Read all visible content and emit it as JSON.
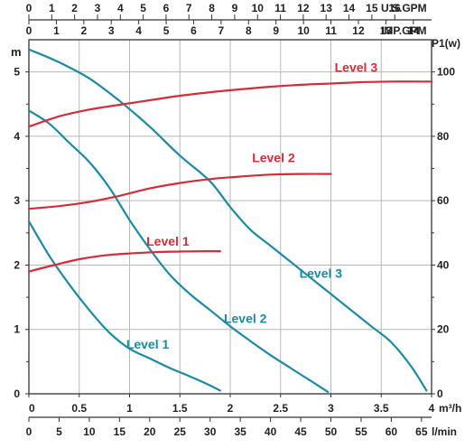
{
  "chart_data": {
    "type": "line",
    "left_axis": {
      "label": "m",
      "range": [
        0,
        5.5
      ],
      "ticks": [
        0,
        1,
        2,
        3,
        4,
        5
      ]
    },
    "right_axis": {
      "label": "P1(w)",
      "range": [
        0,
        110
      ],
      "ticks": [
        0,
        20,
        40,
        60,
        80,
        100
      ]
    },
    "x_axis_m3h": {
      "label": "m³/h",
      "range": [
        0,
        4
      ],
      "ticks": [
        "0",
        "0.5",
        "1",
        "1.5",
        "2",
        "2.5",
        "3",
        "3.5",
        "4"
      ]
    },
    "x_axis_lmin": {
      "label": "l/min",
      "ticks": [
        "0",
        "5",
        "10",
        "15",
        "20",
        "25",
        "30",
        "35",
        "40",
        "45",
        "50",
        "55",
        "60",
        "65"
      ]
    },
    "x_axis_usgpm": {
      "label": "U.S.GPM",
      "ticks": [
        "0",
        "1",
        "2",
        "3",
        "4",
        "5",
        "6",
        "7",
        "8",
        "9",
        "10",
        "11",
        "12",
        "13",
        "14",
        "15",
        "16"
      ]
    },
    "x_axis_impgpm": {
      "label": "IMP.GPM",
      "ticks": [
        "0",
        "1",
        "2",
        "3",
        "4",
        "5",
        "6",
        "7",
        "8",
        "9",
        "10",
        "11",
        "12",
        "13",
        "14"
      ]
    },
    "grid": true,
    "head_series": [
      {
        "name": "Level 1",
        "color": "#1b8aa2",
        "x": [
          0,
          0.2,
          0.4,
          0.6,
          0.8,
          1.0,
          1.2,
          1.4,
          1.6,
          1.8,
          1.9
        ],
        "y": [
          2.68,
          2.15,
          1.7,
          1.3,
          0.95,
          0.7,
          0.55,
          0.4,
          0.27,
          0.13,
          0.05
        ]
      },
      {
        "name": "Level 2",
        "color": "#1b8aa2",
        "x": [
          0,
          0.2,
          0.4,
          0.6,
          0.8,
          1.0,
          1.2,
          1.4,
          1.6,
          1.8,
          2.0,
          2.2,
          2.4,
          2.6,
          2.8,
          2.97
        ],
        "y": [
          4.4,
          4.2,
          3.9,
          3.6,
          3.2,
          2.7,
          2.25,
          1.85,
          1.55,
          1.3,
          1.05,
          0.82,
          0.6,
          0.4,
          0.2,
          0.03
        ]
      },
      {
        "name": "Level 3",
        "color": "#1b8aa2",
        "x": [
          0,
          0.3,
          0.6,
          0.9,
          1.2,
          1.5,
          1.8,
          2.0,
          2.2,
          2.4,
          2.6,
          2.8,
          3.0,
          3.2,
          3.4,
          3.6,
          3.8,
          3.95
        ],
        "y": [
          5.35,
          5.15,
          4.9,
          4.55,
          4.15,
          3.7,
          3.3,
          2.9,
          2.55,
          2.3,
          2.05,
          1.8,
          1.55,
          1.3,
          1.05,
          0.8,
          0.42,
          0.05
        ]
      }
    ],
    "power_series": [
      {
        "name": "Level 1",
        "color": "#d62b3a",
        "x": [
          0,
          0.25,
          0.5,
          0.75,
          1.0,
          1.25,
          1.5,
          1.75,
          1.9
        ],
        "y": [
          38,
          40,
          41.8,
          43,
          43.6,
          44,
          44.2,
          44.3,
          44.3
        ]
      },
      {
        "name": "Level 2",
        "color": "#d62b3a",
        "x": [
          0,
          0.3,
          0.6,
          0.9,
          1.2,
          1.5,
          1.8,
          2.1,
          2.4,
          2.7,
          3.0
        ],
        "y": [
          57.5,
          58.3,
          59.6,
          61.5,
          63.8,
          65.5,
          66.7,
          67.5,
          68.1,
          68.3,
          68.3
        ]
      },
      {
        "name": "Level 3",
        "color": "#d62b3a",
        "x": [
          0,
          0.3,
          0.6,
          0.9,
          1.2,
          1.5,
          1.8,
          2.1,
          2.4,
          2.7,
          3.0,
          3.3,
          3.6,
          3.9,
          4.0
        ],
        "y": [
          83,
          86.2,
          88.3,
          89.8,
          91.2,
          92.6,
          93.7,
          94.6,
          95.4,
          96.0,
          96.4,
          96.8,
          97.0,
          97.0,
          97.0
        ]
      }
    ],
    "annotations": [
      {
        "text": "Level 1",
        "color": "#1b8aa2",
        "x": 1.18,
        "y": 0.7
      },
      {
        "text": "Level 2",
        "color": "#1b8aa2",
        "x": 2.15,
        "y": 1.1
      },
      {
        "text": "Level 3",
        "color": "#1b8aa2",
        "x": 2.9,
        "y": 1.8
      },
      {
        "text": "Level 1",
        "color": "#d62b3a",
        "x": 1.38,
        "y": 2.3
      },
      {
        "text": "Level 2",
        "color": "#d62b3a",
        "x": 2.43,
        "y": 3.6
      },
      {
        "text": "Level 3",
        "color": "#d62b3a",
        "x": 3.25,
        "y": 5.0
      }
    ]
  }
}
